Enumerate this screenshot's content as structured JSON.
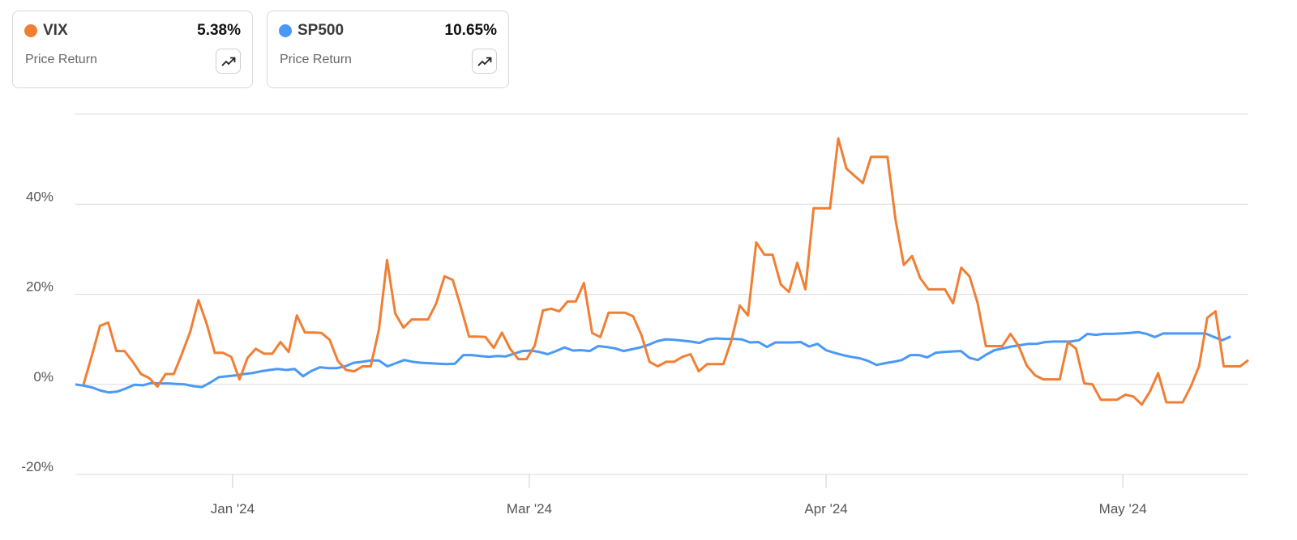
{
  "cards": [
    {
      "name": "VIX",
      "value": "5.38%",
      "subtitle": "Price Return",
      "color": "#F07F34",
      "icon": "trending-up-icon"
    },
    {
      "name": "SP500",
      "value": "10.65%",
      "subtitle": "Price Return",
      "color": "#4A98F7",
      "icon": "trending-up-icon"
    }
  ],
  "chart_data": {
    "type": "line",
    "title": "",
    "xlabel": "",
    "ylabel": "",
    "ylim": [
      -20,
      60
    ],
    "yticks": [
      -20,
      0,
      20,
      40,
      60
    ],
    "ytick_labels": [
      "-20%",
      "0%",
      "20%",
      "40%",
      ""
    ],
    "xtick_labels": [
      "Jan '24",
      "Mar '24",
      "Apr '24",
      "May '24"
    ],
    "grid": "horizontal",
    "series": [
      {
        "name": "VIX",
        "color": "#F07F34",
        "values": [
          null,
          0,
          6.3,
          13.0,
          13.7,
          7.4,
          7.4,
          5.0,
          2.3,
          1.4,
          -0.5,
          2.3,
          2.3,
          6.8,
          11.7,
          18.7,
          13.5,
          7.0,
          7.0,
          6.1,
          1.1,
          5.9,
          7.9,
          6.8,
          6.8,
          9.4,
          7.2,
          15.3,
          11.5,
          11.5,
          11.4,
          9.9,
          5.2,
          3.2,
          2.9,
          4.0,
          4.0,
          12.1,
          27.6,
          15.7,
          12.6,
          14.4,
          14.4,
          14.4,
          18.0,
          24.0,
          23.2,
          17.1,
          10.6,
          10.6,
          10.5,
          8.1,
          11.5,
          7.9,
          5.6,
          5.6,
          8.6,
          16.4,
          16.8,
          16.2,
          18.4,
          18.4,
          22.5,
          11.4,
          10.5,
          15.9,
          15.9,
          15.9,
          15.1,
          11.0,
          5.0,
          4.0,
          5.0,
          5.0,
          6.1,
          6.7,
          2.9,
          4.5,
          4.5,
          4.5,
          9.9,
          17.5,
          15.3,
          31.5,
          28.8,
          28.8,
          22.2,
          20.5,
          27.0,
          21.1,
          39.1,
          39.1,
          39.1,
          54.6,
          47.9,
          46.3,
          44.7,
          50.5,
          50.5,
          50.5,
          36.4,
          26.5,
          28.5,
          23.6,
          21.1,
          21.1,
          21.1,
          18.0,
          25.9,
          24.0,
          18.0,
          8.5,
          8.5,
          8.5,
          11.2,
          8.5,
          4.1,
          2.0,
          1.1,
          1.1,
          1.1,
          9.4,
          7.9,
          0.2,
          0,
          -3.4,
          -3.4,
          -3.4,
          -2.3,
          -2.7,
          -4.5,
          -1.6,
          2.5,
          -4.0,
          -4.0,
          -4.0,
          -0.4,
          4.1,
          14.8,
          16.2,
          4.0,
          4.0,
          4.0,
          5.38
        ]
      },
      {
        "name": "SP500",
        "color": "#4A98F7",
        "values": [
          0,
          -0.3,
          -0.7,
          -1.4,
          -1.8,
          -1.6,
          -0.9,
          -0.1,
          -0.2,
          0.3,
          0.2,
          0.2,
          0.1,
          0.0,
          -0.4,
          -0.6,
          0.4,
          1.6,
          1.8,
          2.0,
          2.3,
          2.5,
          2.9,
          3.2,
          3.4,
          3.2,
          3.4,
          1.8,
          3.0,
          3.8,
          3.6,
          3.6,
          4.0,
          4.8,
          5.0,
          5.3,
          5.3,
          4.0,
          4.7,
          5.4,
          5.0,
          4.8,
          4.7,
          4.6,
          4.5,
          4.6,
          6.5,
          6.5,
          6.3,
          6.1,
          6.3,
          6.2,
          6.8,
          7.4,
          7.5,
          7.2,
          6.7,
          7.4,
          8.2,
          7.5,
          7.6,
          7.4,
          8.5,
          8.3,
          8.0,
          7.4,
          7.8,
          8.2,
          8.8,
          9.6,
          10.0,
          9.9,
          9.7,
          9.5,
          9.2,
          10.0,
          10.2,
          10.1,
          10.1,
          10.0,
          9.3,
          9.4,
          8.3,
          9.3,
          9.3,
          9.3,
          9.4,
          8.4,
          9.0,
          7.6,
          7.0,
          6.5,
          6.1,
          5.8,
          5.2,
          4.3,
          4.7,
          5.0,
          5.4,
          6.5,
          6.5,
          6.0,
          7.0,
          7.2,
          7.3,
          7.4,
          5.9,
          5.4,
          6.6,
          7.6,
          8.0,
          8.4,
          8.7,
          9.0,
          9.0,
          9.4,
          9.5,
          9.5,
          9.5,
          9.8,
          11.2,
          11.0,
          11.2,
          11.2,
          11.3,
          11.4,
          11.6,
          11.2,
          10.5,
          11.3,
          11.3,
          11.3,
          11.3,
          11.3,
          11.3,
          10.5,
          9.8,
          10.65
        ]
      }
    ]
  }
}
